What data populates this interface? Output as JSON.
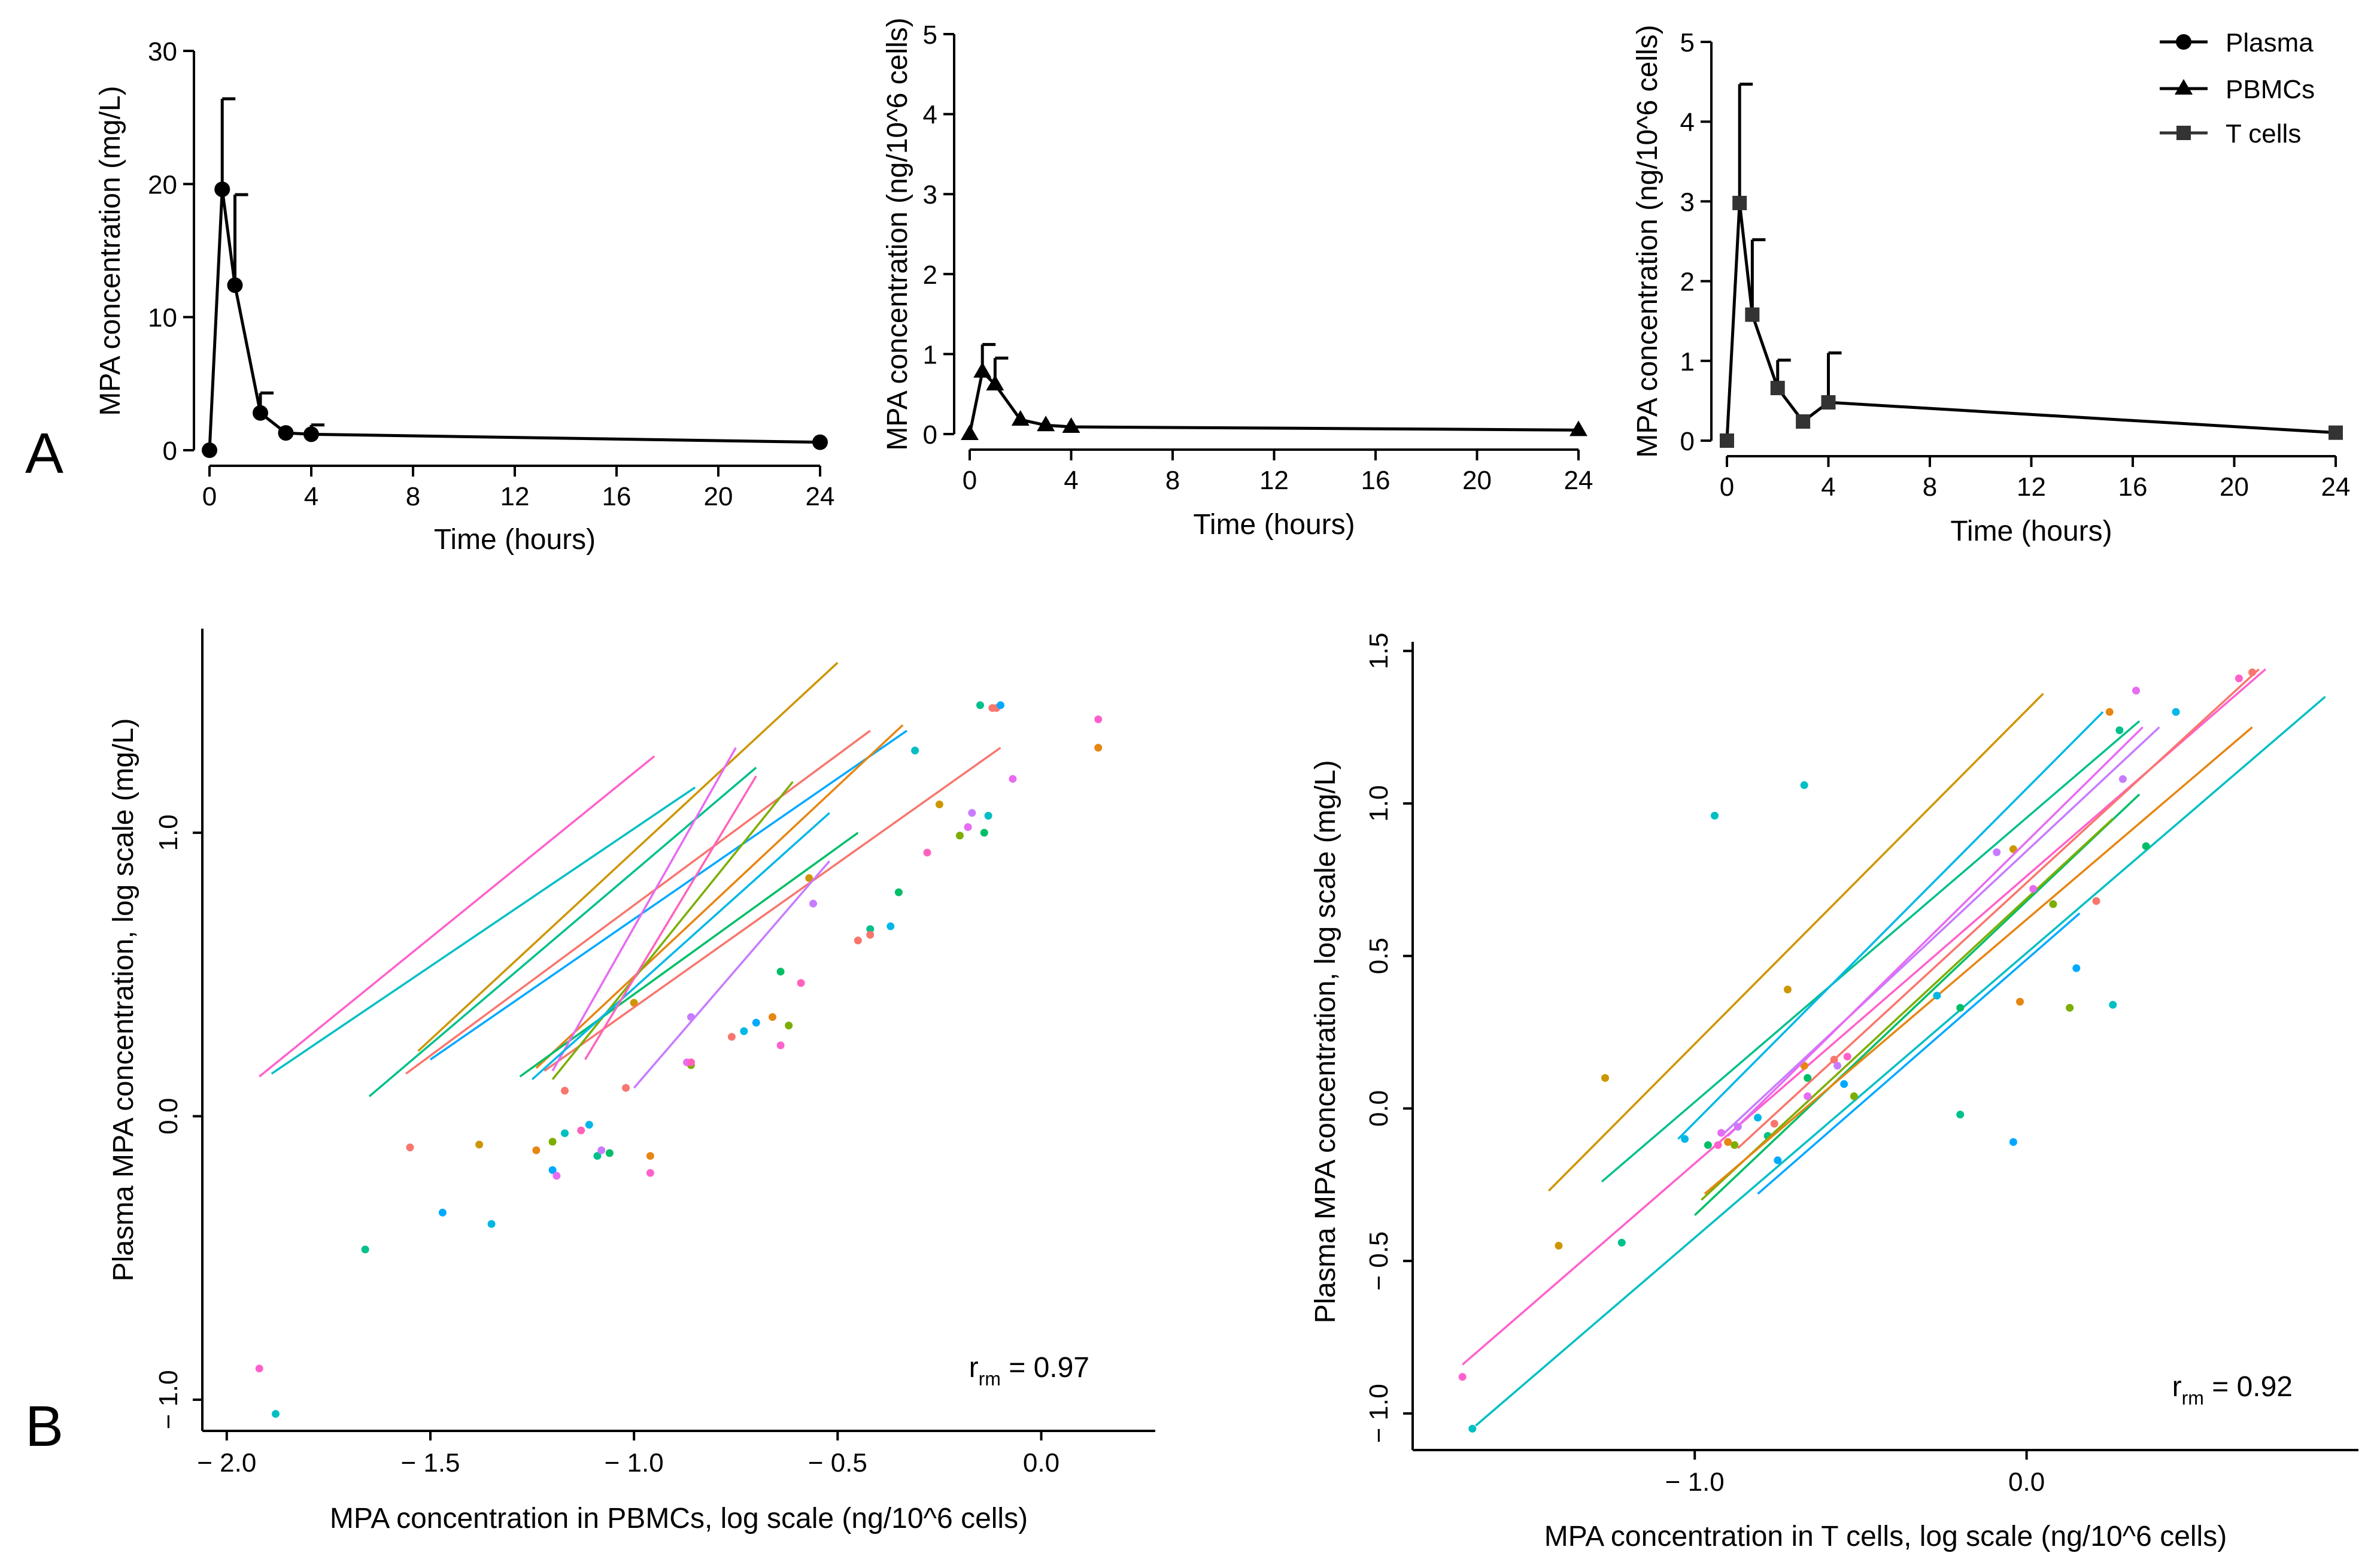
{
  "panel_labels": {
    "a": "A",
    "b": "B"
  },
  "legend": {
    "items": [
      {
        "label": "Plasma",
        "marker": "circle"
      },
      {
        "label": "PBMCs",
        "marker": "triangle"
      },
      {
        "label": "T cells",
        "marker": "square"
      }
    ]
  },
  "chart_data": [
    {
      "id": "pk_plasma",
      "type": "line",
      "title": "",
      "xlabel": "Time (hours)",
      "ylabel": "MPA concentration (mg/L)",
      "xlim": [
        0,
        24
      ],
      "ylim": [
        0,
        30
      ],
      "xticks": [
        0,
        4,
        8,
        12,
        16,
        20,
        24
      ],
      "yticks": [
        0,
        10,
        20,
        30
      ],
      "marker": "circle",
      "color": "#000000",
      "series": [
        {
          "name": "Plasma",
          "x": [
            0,
            0.5,
            1,
            2,
            3,
            4,
            24
          ],
          "y": [
            0,
            19.6,
            12.4,
            2.8,
            1.3,
            1.2,
            0.6
          ],
          "err_upper": [
            0,
            26.4,
            19.2,
            4.3,
            1.3,
            1.9,
            0.6
          ]
        }
      ]
    },
    {
      "id": "pk_pbmc",
      "type": "line",
      "title": "",
      "xlabel": "Time (hours)",
      "ylabel": "MPA concentration (ng/10^6 cells)",
      "xlim": [
        0,
        24
      ],
      "ylim": [
        0,
        5
      ],
      "xticks": [
        0,
        4,
        8,
        12,
        16,
        20,
        24
      ],
      "yticks": [
        0,
        1,
        2,
        3,
        4,
        5
      ],
      "marker": "triangle",
      "color": "#000000",
      "series": [
        {
          "name": "PBMCs",
          "x": [
            0,
            0.5,
            1,
            2,
            3,
            4,
            24
          ],
          "y": [
            0,
            0.78,
            0.62,
            0.18,
            0.11,
            0.09,
            0.05
          ],
          "err_upper": [
            0,
            1.12,
            0.95,
            0.18,
            0.11,
            0.09,
            0.05
          ]
        }
      ]
    },
    {
      "id": "pk_tcell",
      "type": "line",
      "title": "",
      "xlabel": "Time (hours)",
      "ylabel": "MPA concentration (ng/10^6 cells)",
      "xlim": [
        0,
        24
      ],
      "ylim": [
        0,
        5
      ],
      "xticks": [
        0,
        4,
        8,
        12,
        16,
        20,
        24
      ],
      "yticks": [
        0,
        1,
        2,
        3,
        4,
        5
      ],
      "marker": "square",
      "color": "#333333",
      "series": [
        {
          "name": "T cells",
          "x": [
            0,
            0.5,
            1,
            2,
            3,
            4,
            24
          ],
          "y": [
            0,
            2.98,
            1.58,
            0.66,
            0.24,
            0.48,
            0.1
          ],
          "err_upper": [
            0,
            4.47,
            2.52,
            1.01,
            0.24,
            1.1,
            0.1
          ]
        }
      ]
    },
    {
      "id": "rm_pbmc",
      "type": "scatter",
      "title": "",
      "xlabel": "MPA concentration in PBMCs, log scale (ng/10^6 cells)",
      "ylabel": "Plasma MPA concentration, log scale (mg/L)",
      "xlim": [
        -2.06,
        0.28
      ],
      "ylim": [
        -1.11,
        1.72
      ],
      "xticks": [
        -2.0,
        -1.5,
        -1.0,
        -0.5,
        0.0
      ],
      "xtick_labels": [
        "− 2.0",
        "− 1.5",
        "− 1.0",
        "− 0.5",
        "0.0"
      ],
      "yticks": [
        -1.0,
        0.0,
        1.0
      ],
      "ytick_labels": [
        "− 1.0",
        "0.0",
        "1.0"
      ],
      "annotation": {
        "r": "r",
        "sub": "rm",
        "value": " = 0.97"
      },
      "series": [
        {
          "color": "#00BFC4",
          "x": [
            -1.88,
            -1.17,
            -0.31,
            -0.13
          ],
          "y": [
            -1.05,
            -0.06,
            1.29,
            1.06
          ],
          "fit": [
            -1.89,
            0.15,
            -0.85,
            1.16
          ]
        },
        {
          "color": "#FF61CC",
          "x": [
            -1.92,
            -0.96,
            -0.64,
            0.14
          ],
          "y": [
            -0.89,
            -0.2,
            0.25,
            1.4
          ],
          "fit": [
            -1.92,
            0.14,
            -0.95,
            1.27
          ]
        },
        {
          "color": "#F8766D",
          "x": [
            -1.55,
            -1.02,
            -0.45,
            -0.12
          ],
          "y": [
            -0.11,
            0.1,
            0.62,
            1.44
          ],
          "fit": [
            -1.56,
            0.15,
            -0.42,
            1.36
          ]
        },
        {
          "color": "#00C08B",
          "x": [
            -1.66,
            -1.09,
            -0.42,
            -0.15
          ],
          "y": [
            -0.47,
            -0.14,
            0.66,
            1.45
          ],
          "fit": [
            -1.65,
            0.07,
            -0.7,
            1.23
          ]
        },
        {
          "color": "#CD9600",
          "x": [
            -1.38,
            -1.0,
            -0.57,
            -0.25
          ],
          "y": [
            -0.1,
            0.4,
            0.84,
            1.1
          ],
          "fit": [
            -1.53,
            0.23,
            -0.5,
            1.6
          ]
        },
        {
          "color": "#F8766D",
          "x": [
            -1.17,
            -0.76,
            -0.42,
            -0.11
          ],
          "y": [
            0.09,
            0.28,
            0.64,
            1.44
          ],
          "fit": [
            -1.22,
            0.16,
            -0.1,
            1.3
          ]
        },
        {
          "color": "#00A9FF",
          "x": [
            -1.47,
            -1.2,
            -0.7,
            -0.1
          ],
          "y": [
            -0.34,
            -0.19,
            0.33,
            1.45
          ],
          "fit": [
            -1.5,
            0.2,
            -0.33,
            1.36
          ]
        },
        {
          "color": "#E68613",
          "x": [
            -1.24,
            -0.96,
            -0.66,
            0.14
          ],
          "y": [
            -0.12,
            -0.14,
            0.35,
            1.3
          ],
          "fit": [
            -1.24,
            0.17,
            -0.34,
            1.38
          ]
        },
        {
          "color": "#7CAE00",
          "x": [
            -1.2,
            -0.86,
            -0.62,
            -0.2
          ],
          "y": [
            -0.09,
            0.18,
            0.32,
            0.99
          ],
          "fit": [
            -1.2,
            0.13,
            -0.61,
            1.18
          ]
        },
        {
          "color": "#00BE67",
          "x": [
            -1.06,
            -0.64,
            -0.35,
            -0.14
          ],
          "y": [
            -0.13,
            0.51,
            0.79,
            1.0
          ],
          "fit": [
            -1.28,
            0.14,
            -0.45,
            1.0
          ]
        },
        {
          "color": "#C77CFF",
          "x": [
            -1.08,
            -0.86,
            -0.56,
            -0.17
          ],
          "y": [
            -0.12,
            0.35,
            0.75,
            1.07
          ],
          "fit": [
            -1.0,
            0.1,
            -0.52,
            0.9
          ]
        },
        {
          "color": "#E76BF3",
          "x": [
            -1.19,
            -0.87,
            -0.18,
            -0.07
          ],
          "y": [
            -0.21,
            0.19,
            1.02,
            1.19
          ],
          "fit": [
            -1.2,
            0.16,
            -0.75,
            1.3
          ]
        },
        {
          "color": "#00B8E7",
          "x": [
            -1.35,
            -1.11,
            -0.73,
            -0.37
          ],
          "y": [
            -0.38,
            -0.03,
            0.3,
            0.67
          ],
          "fit": [
            -1.25,
            0.13,
            -0.52,
            1.07
          ]
        },
        {
          "color": "#FF62BC",
          "x": [
            -1.13,
            -0.86,
            -0.59,
            -0.28
          ],
          "y": [
            -0.05,
            0.19,
            0.47,
            0.93
          ],
          "fit": [
            -1.12,
            0.2,
            -0.7,
            1.2
          ]
        }
      ]
    },
    {
      "id": "rm_tcell",
      "type": "scatter",
      "title": "",
      "xlabel": "MPA concentration in T cells, log scale (ng/10^6 cells)",
      "ylabel": "Plasma MPA concentration, log scale (mg/L)",
      "xlim": [
        -1.85,
        1.0
      ],
      "ylim": [
        -1.12,
        1.53
      ],
      "xticks": [
        -1.0,
        0.0
      ],
      "xtick_labels": [
        "− 1.0",
        "0.0"
      ],
      "yticks": [
        -1.0,
        -0.5,
        0.0,
        0.5,
        1.0,
        1.5
      ],
      "ytick_labels": [
        "− 1.0",
        "− 0.5",
        "0.0",
        "0.5",
        "1.0",
        "1.5"
      ],
      "annotation": {
        "r": "r",
        "sub": "rm",
        "value": " = 0.92"
      },
      "series": [
        {
          "color": "#00BFC4",
          "x": [
            -1.67,
            -0.94,
            -0.67,
            0.26
          ],
          "y": [
            -1.05,
            0.96,
            1.06,
            0.34
          ],
          "fit": [
            -1.66,
            -1.04,
            0.9,
            1.35
          ]
        },
        {
          "color": "#FF61CC",
          "x": [
            -1.7,
            -0.93,
            -0.54,
            0.64
          ],
          "y": [
            -0.88,
            -0.12,
            0.17,
            1.41
          ],
          "fit": [
            -1.7,
            -0.84,
            0.72,
            1.44
          ]
        },
        {
          "color": "#CD9600",
          "x": [
            -1.41,
            -1.27,
            -0.72,
            -0.04
          ],
          "y": [
            -0.45,
            0.1,
            0.39,
            0.85
          ],
          "fit": [
            -1.44,
            -0.27,
            0.05,
            1.36
          ]
        },
        {
          "color": "#00A9FF",
          "x": [
            -0.75,
            -0.55,
            -0.04,
            0.15
          ],
          "y": [
            -0.17,
            0.08,
            -0.11,
            0.46
          ],
          "fit": [
            -0.81,
            -0.28,
            0.16,
            0.64
          ]
        },
        {
          "color": "#00BE67",
          "x": [
            -0.96,
            -0.66,
            -0.2,
            0.36
          ],
          "y": [
            -0.12,
            0.1,
            0.33,
            0.86
          ],
          "fit": [
            -1.0,
            -0.35,
            0.34,
            1.03
          ]
        },
        {
          "color": "#00C08B",
          "x": [
            -1.22,
            -0.78,
            -0.2,
            0.28
          ],
          "y": [
            -0.44,
            -0.09,
            -0.02,
            1.24
          ],
          "fit": [
            -1.28,
            -0.24,
            0.34,
            1.27
          ]
        },
        {
          "color": "#7CAE00",
          "x": [
            -0.88,
            -0.52,
            0.08,
            0.13
          ],
          "y": [
            -0.12,
            0.04,
            0.67,
            0.33
          ],
          "fit": [
            -0.98,
            -0.3,
            0.26,
            0.95
          ]
        },
        {
          "color": "#E68613",
          "x": [
            -0.9,
            -0.67,
            -0.02,
            0.25
          ],
          "y": [
            -0.11,
            0.14,
            0.35,
            1.3
          ],
          "fit": [
            -0.97,
            -0.28,
            0.68,
            1.25
          ]
        },
        {
          "color": "#F8766D",
          "x": [
            -0.76,
            -0.58,
            0.21,
            0.68
          ],
          "y": [
            -0.05,
            0.16,
            0.68,
            1.43
          ],
          "fit": [
            -0.87,
            -0.13,
            0.7,
            1.44
          ]
        },
        {
          "color": "#00B8E7",
          "x": [
            -1.03,
            -0.81,
            -0.27,
            0.45
          ],
          "y": [
            -0.1,
            -0.03,
            0.37,
            1.3
          ],
          "fit": [
            -1.05,
            -0.1,
            0.23,
            1.3
          ]
        },
        {
          "color": "#C77CFF",
          "x": [
            -0.87,
            -0.57,
            -0.09,
            0.29
          ],
          "y": [
            -0.06,
            0.14,
            0.84,
            1.08
          ],
          "fit": [
            -0.92,
            -0.09,
            0.4,
            1.25
          ]
        },
        {
          "color": "#E76BF3",
          "x": [
            -0.92,
            -0.66,
            0.02,
            0.33
          ],
          "y": [
            -0.08,
            0.04,
            0.72,
            1.37
          ],
          "fit": [
            -0.9,
            -0.09,
            0.35,
            1.25
          ]
        }
      ]
    }
  ]
}
